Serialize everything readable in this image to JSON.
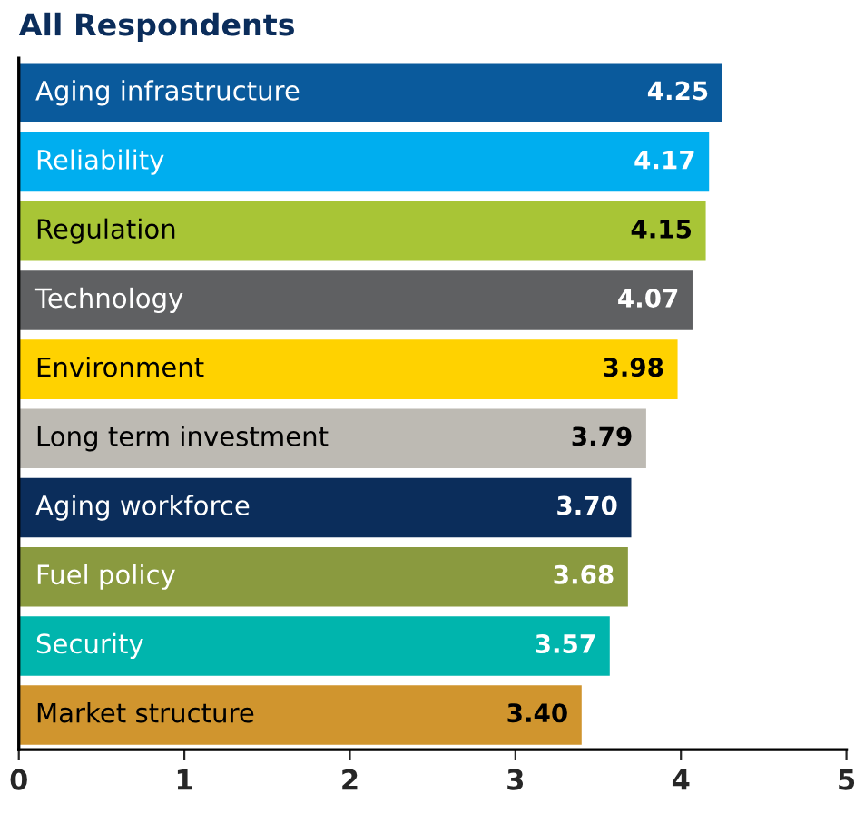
{
  "chart_data": {
    "type": "bar",
    "orientation": "horizontal",
    "title": "All Respondents",
    "categories": [
      "Aging infrastructure",
      "Reliability",
      "Regulation",
      "Technology",
      "Environment",
      "Long term investment",
      "Aging workforce",
      "Fuel policy",
      "Security",
      "Market structure"
    ],
    "values": [
      4.25,
      4.17,
      4.15,
      4.07,
      3.98,
      3.79,
      3.7,
      3.68,
      3.57,
      3.4
    ],
    "value_labels": [
      "4.25",
      "4.17",
      "4.15",
      "4.07",
      "3.98",
      "3.79",
      "3.70",
      "3.68",
      "3.57",
      "3.40"
    ],
    "colors": [
      "#0a5a9c",
      "#00aeef",
      "#a8c536",
      "#5f6062",
      "#ffd200",
      "#bdbab3",
      "#0b2d5b",
      "#8a9a3f",
      "#00b5ad",
      "#d0952e"
    ],
    "xlim": [
      0,
      5
    ],
    "xticks": [
      0,
      1,
      2,
      3,
      4,
      5
    ],
    "grid": false,
    "legend": false
  }
}
